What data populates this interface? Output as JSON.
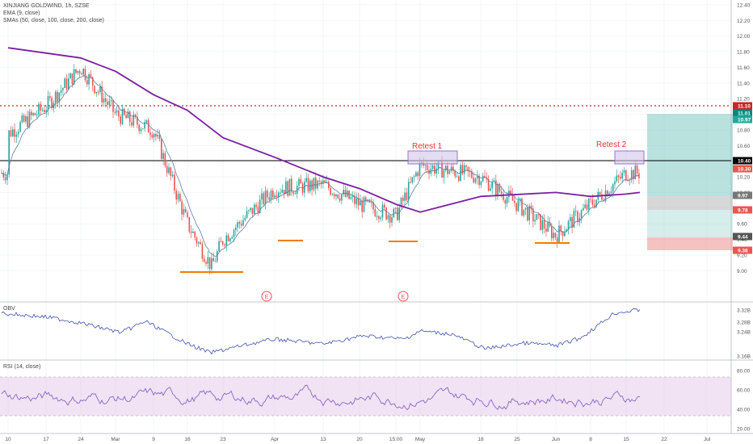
{
  "chart_header": {
    "symbol": "XINJIANG GOLDWIND, 1h, SZSE",
    "ema_label": "EMA (9, close)",
    "smas_label": "SMAs (50, close, 100, close, 200, close)"
  },
  "obv_label": "OBV",
  "rsi_label": "RSI (14, close)",
  "annotations": {
    "retest1": "Retest 1",
    "retest2": "Retest 2",
    "earnings_marker": "E"
  },
  "colors": {
    "up": "#26a69a",
    "down": "#ef5350",
    "sma": "#7b1fa2",
    "ema": "#5b7fa6",
    "support": "#f57c00",
    "resistance_dotted": "#c62828",
    "retest_box": "#b39ddb",
    "target_zone": "#80cbc4",
    "stop_zone": "#ef9a9a",
    "obv_line": "#3f51b5",
    "rsi_line": "#7e57c2"
  },
  "price_axis_ticks": [
    "12.40",
    "12.20",
    "12.00",
    "11.80",
    "11.60",
    "11.40",
    "11.20",
    "11.00",
    "10.80",
    "10.60",
    "10.40",
    "10.20",
    "10.00",
    "9.80",
    "9.60",
    "9.40",
    "9.20",
    "9.00"
  ],
  "price_tags": [
    {
      "value": "11.10",
      "color": "#c62828"
    },
    {
      "value": "11.01",
      "color": "#00897b"
    },
    {
      "value": "10.97",
      "color": "#26a69a"
    },
    {
      "value": "10.40",
      "color": "#000000"
    },
    {
      "value": "10.30",
      "color": "#ef5350"
    },
    {
      "value": "9.97",
      "color": "#777777"
    },
    {
      "value": "9.78",
      "color": "#ef5350"
    },
    {
      "value": "9.44",
      "color": "#555555"
    },
    {
      "value": "9.38",
      "color": "#ef5350"
    }
  ],
  "obv_axis_ticks": [
    "3.32B",
    "3.28B",
    "3.24B",
    "3.16B"
  ],
  "rsi_axis_ticks": [
    "80.00",
    "60.00",
    "40.00",
    "20.00"
  ],
  "time_axis_labels": [
    "10",
    "17",
    "24",
    "Mar",
    "9",
    "16",
    "23",
    "Apr",
    "13",
    "20",
    "15:00",
    "May",
    "18",
    "25",
    "Jun",
    "8",
    "15",
    "22",
    "Jul"
  ],
  "chart_data": {
    "type": "candlestick",
    "title": "XINJIANG GOLDWIND, 1h, SZSE",
    "y_range": [
      8.8,
      12.45
    ],
    "key_levels": {
      "resistance": 10.4,
      "dotted_resistance": 11.1,
      "target_top": 11.01,
      "entry": 9.97,
      "stop_top": 9.78,
      "stop_low": 9.44,
      "stop_bottom": 9.38
    },
    "support_levels": [
      9.0,
      9.4,
      9.4,
      9.37
    ],
    "sma200_path": [
      {
        "x": "10",
        "y": 11.85
      },
      {
        "x": "24",
        "y": 11.72
      },
      {
        "x": "Mar",
        "y": 11.55
      },
      {
        "x": "9",
        "y": 11.25
      },
      {
        "x": "16",
        "y": 11.05
      },
      {
        "x": "23",
        "y": 10.7
      },
      {
        "x": "Apr",
        "y": 10.45
      },
      {
        "x": "13",
        "y": 10.2
      },
      {
        "x": "20",
        "y": 10.05
      },
      {
        "x": "15:00",
        "y": 9.85
      },
      {
        "x": "May",
        "y": 9.75
      },
      {
        "x": "18",
        "y": 9.95
      },
      {
        "x": "Jun",
        "y": 10.0
      },
      {
        "x": "8",
        "y": 9.95
      },
      {
        "x": "15",
        "y": 9.98
      }
    ],
    "price_path": [
      {
        "x": "10",
        "y": 10.75
      },
      {
        "x": "17",
        "y": 11.1
      },
      {
        "x": "24",
        "y": 11.6
      },
      {
        "x": "Mar",
        "y": 11.0
      },
      {
        "x": "9",
        "y": 10.8
      },
      {
        "x": "16",
        "y": 9.6
      },
      {
        "x": "20",
        "y": 9.05
      },
      {
        "x": "23",
        "y": 9.4
      },
      {
        "x": "Apr",
        "y": 10.05
      },
      {
        "x": "13",
        "y": 10.1
      },
      {
        "x": "20",
        "y": 9.85
      },
      {
        "x": "15:00",
        "y": 9.7
      },
      {
        "x": "May",
        "y": 10.35
      },
      {
        "x": "18",
        "y": 10.2
      },
      {
        "x": "25",
        "y": 9.85
      },
      {
        "x": "Jun",
        "y": 9.45
      },
      {
        "x": "8",
        "y": 9.85
      },
      {
        "x": "15",
        "y": 10.25
      }
    ],
    "obv": {
      "min": "3.16B",
      "max": "3.32B"
    },
    "rsi": {
      "upper_band": 70,
      "lower_band": 30
    }
  }
}
